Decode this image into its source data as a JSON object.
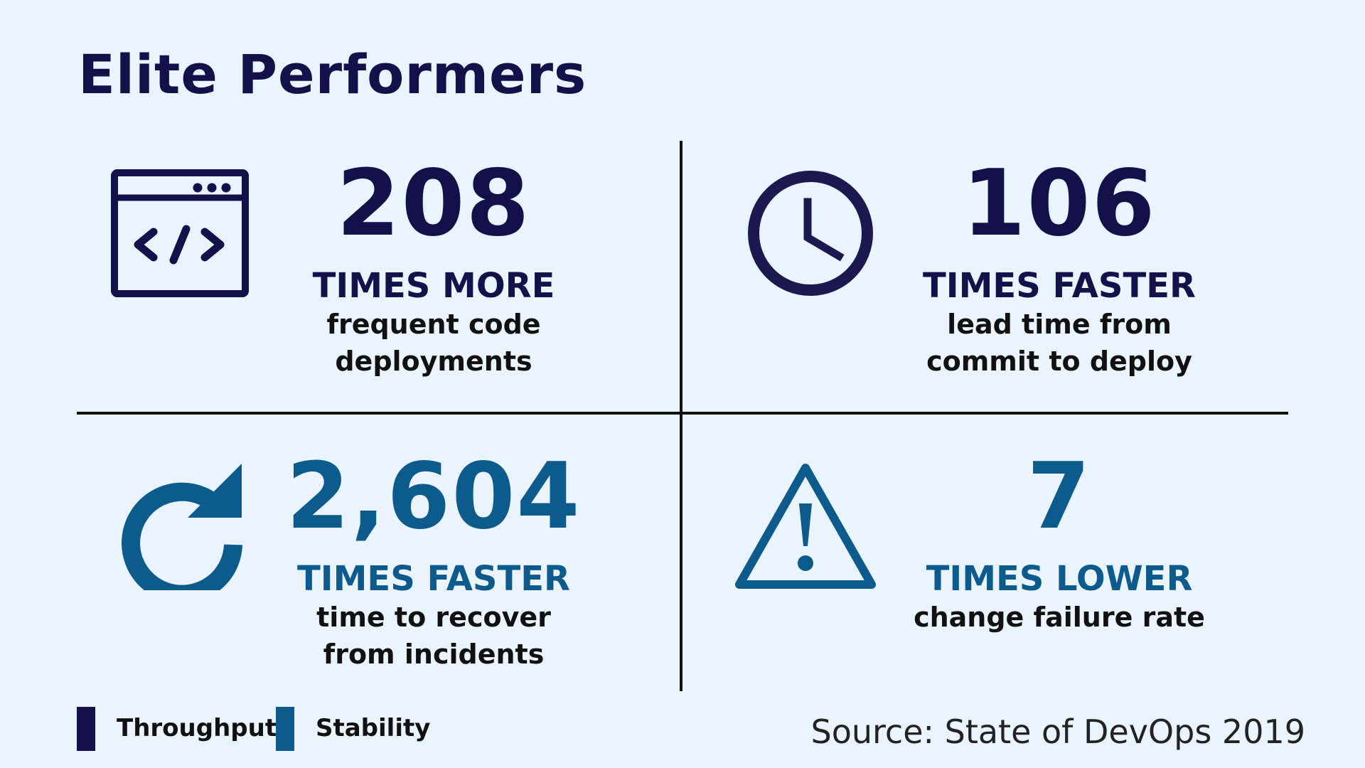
{
  "title": "Elite Performers",
  "colors": {
    "throughput": "#13114a",
    "stability": "#0d5a8c",
    "background": "#eaf4fe"
  },
  "stats": [
    {
      "icon": "code-window-icon",
      "number": "208",
      "heading": "TIMES MORE",
      "desc_line1": "frequent code",
      "desc_line2": "deployments",
      "category": "throughput"
    },
    {
      "icon": "clock-icon",
      "number": "106",
      "heading": "TIMES FASTER",
      "desc_line1": "lead time from",
      "desc_line2": "commit to deploy",
      "category": "throughput"
    },
    {
      "icon": "refresh-icon",
      "number": "2,604",
      "heading": "TIMES FASTER",
      "desc_line1": "time to recover",
      "desc_line2": "from incidents",
      "category": "stability"
    },
    {
      "icon": "warning-icon",
      "number": "7",
      "heading": "TIMES LOWER",
      "desc_line1": "change failure rate",
      "category": "stability"
    }
  ],
  "legend": {
    "throughput_label": "Throughput",
    "stability_label": "Stability"
  },
  "source": "Source: State of DevOps 2019"
}
